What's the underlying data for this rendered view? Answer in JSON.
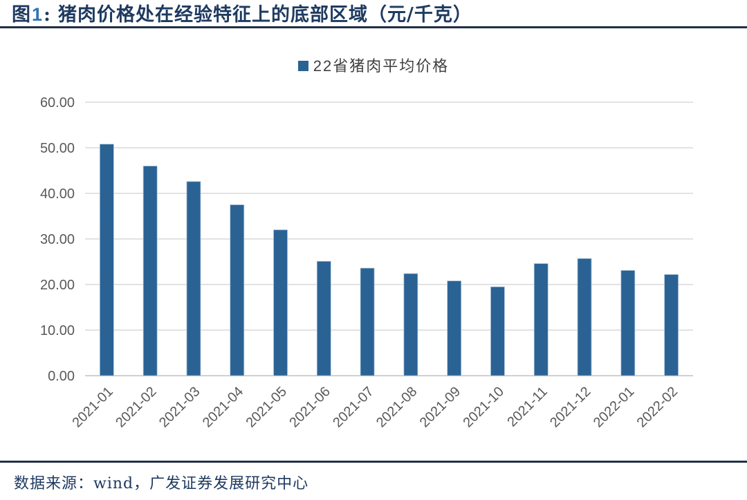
{
  "page": {
    "title": {
      "prefix": "图",
      "number": "1",
      "separator": ":",
      "text": "猪肉价格处在经验特征上的底部区域（元/千克）"
    },
    "footer": {
      "source": "数据来源：wind，广发证券发展研究中心"
    }
  },
  "colors": {
    "bar": "#2B6294",
    "bar_border": "#A9C4DB",
    "title_text": "#1E3A60",
    "title_number": "#2E75B6",
    "rule": "#1F2F45",
    "axis_label": "#595959",
    "legend_text": "#404040",
    "gridline": "#D9D9D9",
    "baseline": "#C0C0C0"
  },
  "chart_data": {
    "type": "bar",
    "title": "",
    "legend": "22省猪肉平均价格",
    "legend_position": "top-center",
    "categories": [
      "2021-01",
      "2021-02",
      "2021-03",
      "2021-04",
      "2021-05",
      "2021-06",
      "2021-07",
      "2021-08",
      "2021-09",
      "2021-10",
      "2021-11",
      "2021-12",
      "2022-01",
      "2022-02"
    ],
    "values": [
      50.8,
      46.0,
      42.6,
      37.5,
      32.0,
      25.1,
      23.6,
      22.4,
      20.8,
      19.5,
      24.6,
      25.7,
      23.1,
      22.2
    ],
    "xlabel": "",
    "ylabel": "",
    "ylim": [
      0,
      60
    ],
    "ytick_step": 10,
    "ytick_decimals": 2,
    "grid": true,
    "xlabel_rotation": -45
  }
}
